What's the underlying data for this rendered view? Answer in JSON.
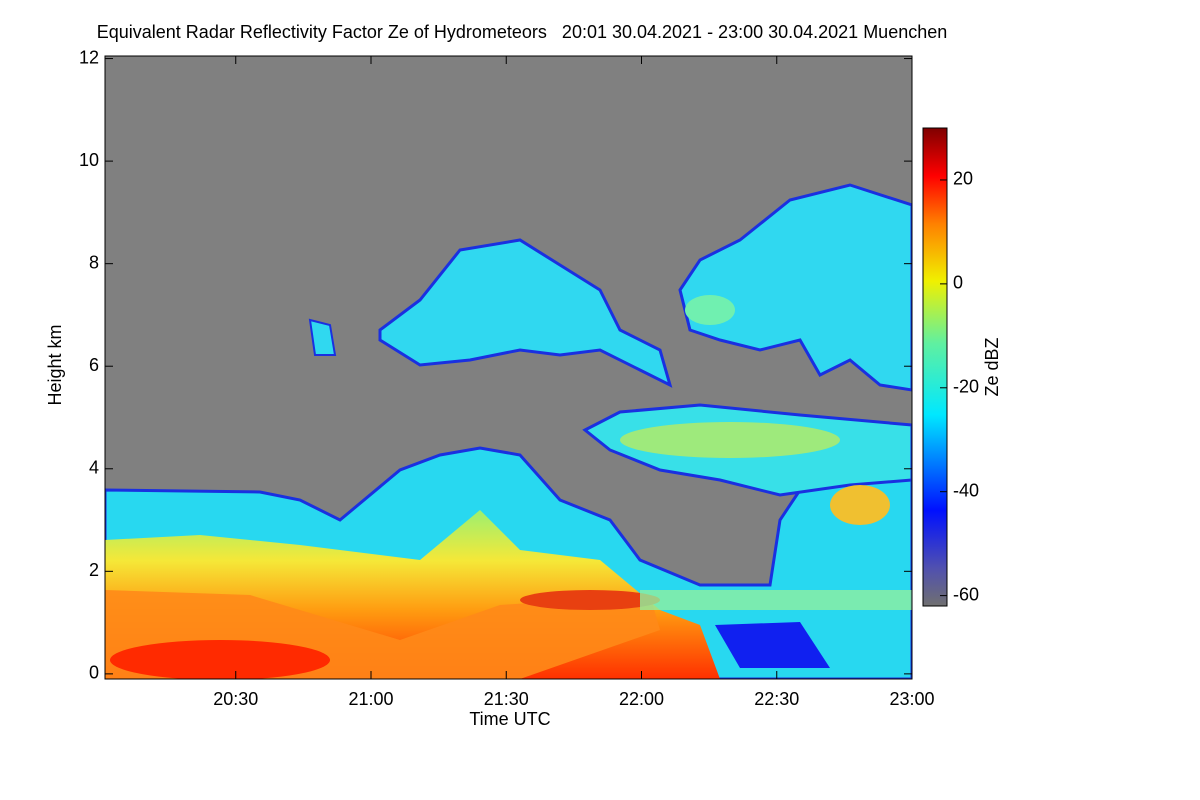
{
  "chart_data": {
    "type": "heatmap",
    "title": "Equivalent Radar Reflectivity Factor Ze of Hydrometeors   20:01 30.04.2021 - 23:00 30.04.2021 Muenchen",
    "x_label": "Time UTC",
    "y_label": "Height km",
    "xlim": [
      1201,
      1380
    ],
    "xticks": [
      {
        "value": 1230,
        "label": "20:30"
      },
      {
        "value": 1260,
        "label": "21:00"
      },
      {
        "value": 1290,
        "label": "21:30"
      },
      {
        "value": 1320,
        "label": "22:00"
      },
      {
        "value": 1350,
        "label": "22:30"
      },
      {
        "value": 1380,
        "label": "23:00"
      }
    ],
    "ylim": [
      -0.1,
      12.05
    ],
    "yticks": [
      0,
      2,
      4,
      6,
      8,
      10,
      12
    ],
    "colorbar": {
      "label": "Ze dBZ",
      "lim": [
        -62,
        30
      ],
      "ticks": [
        -60,
        -40,
        -20,
        0,
        20
      ]
    }
  }
}
